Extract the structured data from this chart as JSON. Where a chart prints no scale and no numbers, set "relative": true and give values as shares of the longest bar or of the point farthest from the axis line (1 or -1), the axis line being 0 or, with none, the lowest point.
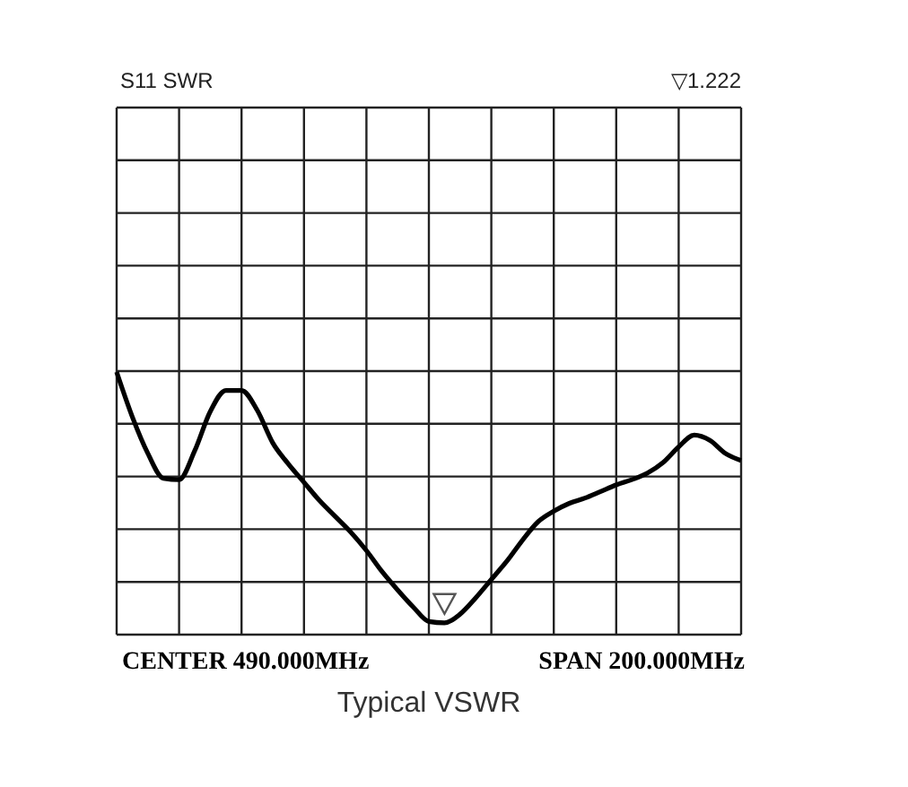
{
  "chart_data": {
    "type": "line",
    "title": "Typical VSWR",
    "subtitle": "S11 SWR",
    "relative": true,
    "grid": true,
    "marker": "none",
    "line_style": "solid",
    "annotations": [
      "▽1.222",
      "CENTER 490.000MHz",
      "SPAN 200.000MHz"
    ],
    "categories": [
      null,
      null,
      null,
      null,
      null,
      null,
      null,
      null,
      null,
      null,
      null,
      null,
      null,
      null,
      null,
      null,
      null,
      null,
      null,
      null,
      null,
      null,
      null,
      null,
      null,
      null,
      null,
      null,
      null,
      null,
      null,
      null,
      null,
      null,
      null,
      null,
      null,
      null,
      null,
      null,
      null
    ],
    "series": [
      {
        "color": "#000000",
        "values": [
          1.0,
          0.83,
          0.69,
          0.595,
          0.59,
          0.7,
          0.85,
          0.93,
          0.93,
          0.855,
          0.73,
          0.65,
          0.58,
          0.51,
          0.45,
          0.39,
          0.32,
          0.24,
          0.17,
          0.105,
          0.05,
          0.045,
          0.078,
          0.14,
          0.21,
          0.28,
          0.36,
          0.43,
          0.47,
          0.5,
          0.52,
          0.545,
          0.57,
          0.59,
          0.615,
          0.655,
          0.715,
          0.76,
          0.74,
          0.69,
          0.663
        ]
      }
    ]
  }
}
